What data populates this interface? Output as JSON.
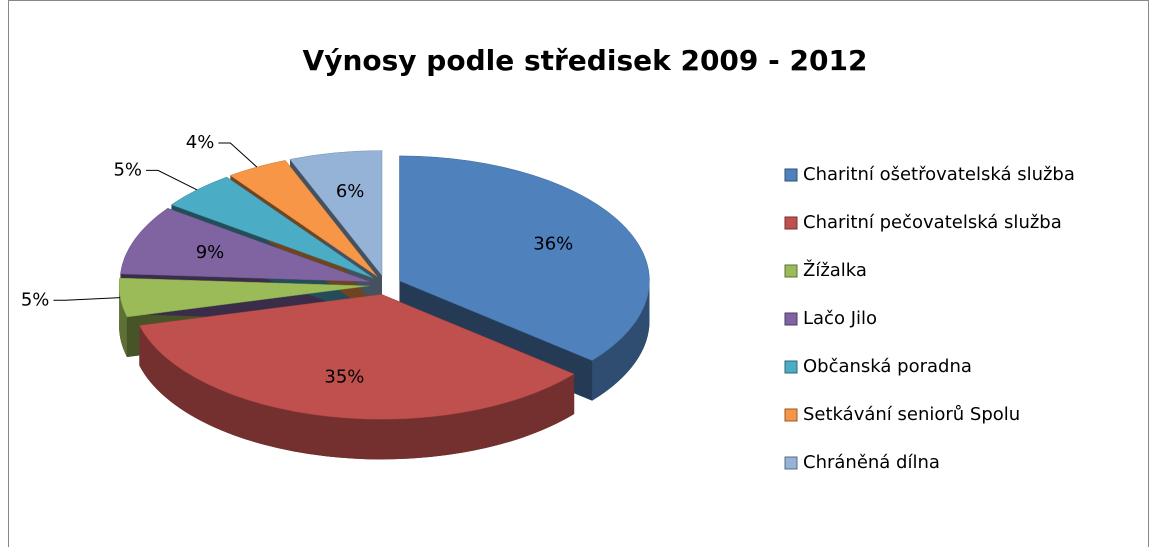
{
  "chart_data": {
    "type": "pie",
    "title": "Výnosy podle středisek 2009 - 2012",
    "categories": [
      "Charitní ošetřovatelská služba",
      "Charitní pečovatelská služba",
      "Žížalka",
      "Lačo Jilo",
      "Občanská poradna",
      "Setkávání seniorů Spolu",
      "Chráněná dílna"
    ],
    "values": [
      36,
      35,
      5,
      9,
      5,
      4,
      6
    ],
    "value_labels": [
      "36%",
      "35%",
      "5%",
      "9%",
      "5%",
      "4%",
      "6%"
    ],
    "colors": [
      "#4f81bd",
      "#c0504d",
      "#9bbb59",
      "#8064a2",
      "#4bacc6",
      "#f79646",
      "#95b3d7"
    ],
    "legend": "right"
  }
}
